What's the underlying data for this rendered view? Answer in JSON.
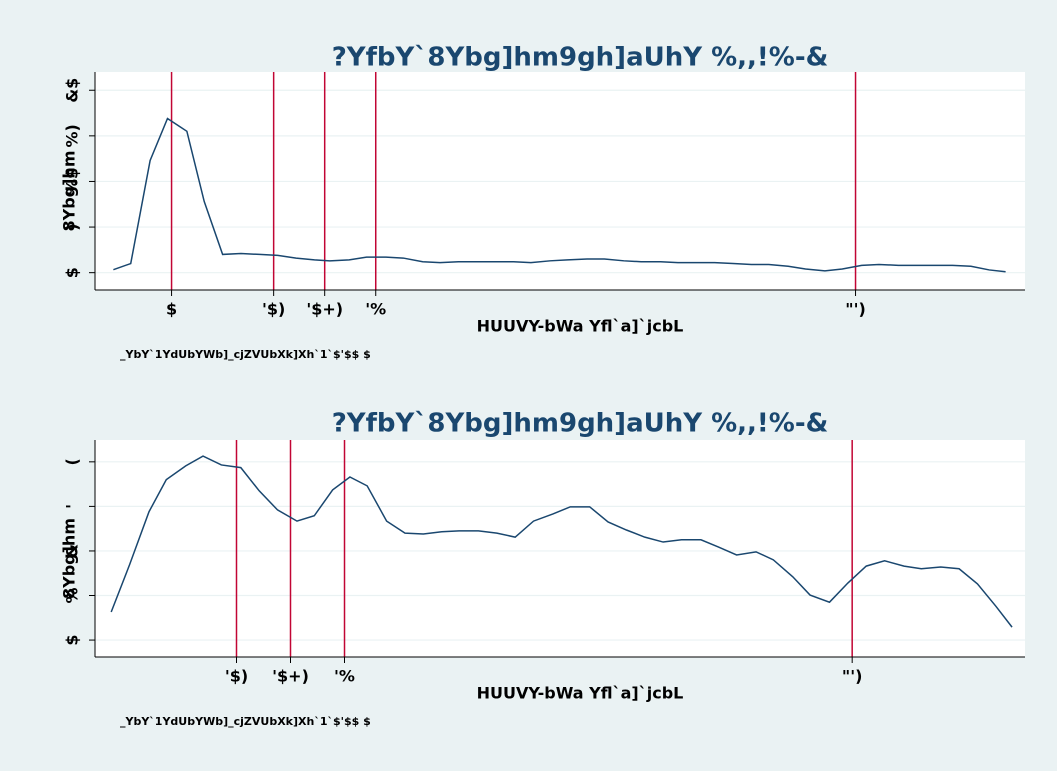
{
  "chart_data": [
    {
      "type": "line",
      "title": "?YfbY`8Ybg]hm9gh]aUhY %,,!%-&",
      "ylabel": "8Ybg]hm",
      "xlabel": "HUUVY-bWa Yfl`a]`jcbL",
      "note": "_YbY`1YdUbYWb]_cjZVUbXk]Xh`1`$'$$ $",
      "xlim": [
        -0.75,
        8.36
      ],
      "ylim": [
        -1.9,
        22
      ],
      "xticks": [
        {
          "value": 0,
          "label": "$"
        },
        {
          "value": 1,
          "label": "'$)"
        },
        {
          "value": 1.5,
          "label": "'$+)"
        },
        {
          "value": 2,
          "label": "'%"
        },
        {
          "value": 6.7,
          "label": "\"')"
        }
      ],
      "yticks": [
        {
          "value": 0,
          "label": "$"
        },
        {
          "value": 5,
          "label": ")"
        },
        {
          "value": 10,
          "label": "%$"
        },
        {
          "value": 15,
          "label": "%)"
        },
        {
          "value": 20,
          "label": "&$"
        }
      ],
      "grid": true,
      "xlines": true,
      "xline_color": "#c10534",
      "x": [
        -0.57,
        -0.4,
        -0.21,
        -0.04,
        0.15,
        0.32,
        0.5,
        0.68,
        0.86,
        1.04,
        1.22,
        1.4,
        1.55,
        1.74,
        1.91,
        2.1,
        2.27,
        2.46,
        2.63,
        2.81,
        2.99,
        3.17,
        3.35,
        3.52,
        3.71,
        3.88,
        4.07,
        4.24,
        4.43,
        4.6,
        4.79,
        4.96,
        5.15,
        5.32,
        5.5,
        5.68,
        5.85,
        6.04,
        6.21,
        6.4,
        6.57,
        6.76,
        6.93,
        7.12,
        7.29,
        7.48,
        7.65,
        7.83,
        8.01,
        8.17
      ],
      "series": [
        {
          "color": "#1a476f",
          "values": [
            0.33,
            1.0,
            12.3,
            16.9,
            15.5,
            7.8,
            2.0,
            2.1,
            2.0,
            1.9,
            1.6,
            1.4,
            1.3,
            1.4,
            1.7,
            1.7,
            1.6,
            1.2,
            1.1,
            1.2,
            1.2,
            1.2,
            1.2,
            1.1,
            1.3,
            1.4,
            1.5,
            1.5,
            1.3,
            1.2,
            1.2,
            1.1,
            1.1,
            1.1,
            1.0,
            0.9,
            0.9,
            0.7,
            0.4,
            0.2,
            0.4,
            0.8,
            0.9,
            0.8,
            0.8,
            0.8,
            0.8,
            0.7,
            0.3,
            0.1
          ]
        }
      ]
    },
    {
      "type": "line",
      "title": "?YfbY`8Ybg]hm9gh]aUhY %,,!%-&",
      "ylabel": "8Ybg]hm",
      "xlabel": "HUUVY-bWa Yfl`a]`jcbL",
      "note": "_YbY`1YdUbYWb]_cjZVUbXk]Xh`1`$'$$ $",
      "xlim": [
        -0.31,
        8.3
      ],
      "ylim": [
        -0.38,
        4.49
      ],
      "xticks": [
        {
          "value": 1,
          "label": "'$)"
        },
        {
          "value": 1.5,
          "label": "'$+)"
        },
        {
          "value": 2,
          "label": "'%"
        },
        {
          "value": 6.7,
          "label": "\"')"
        }
      ],
      "yticks": [
        {
          "value": 0,
          "label": "$"
        },
        {
          "value": 1,
          "label": "%"
        },
        {
          "value": 2,
          "label": "&"
        },
        {
          "value": 3,
          "label": "'"
        },
        {
          "value": 4,
          "label": "("
        }
      ],
      "grid": true,
      "xlines": true,
      "xline_color": "#c10534",
      "x": [
        -0.16,
        0.01,
        0.19,
        0.35,
        0.53,
        0.69,
        0.86,
        1.04,
        1.21,
        1.38,
        1.56,
        1.72,
        1.89,
        2.05,
        2.21,
        2.39,
        2.56,
        2.73,
        2.9,
        3.06,
        3.24,
        3.41,
        3.58,
        3.75,
        3.93,
        4.09,
        4.27,
        4.44,
        4.61,
        4.78,
        4.95,
        5.12,
        5.3,
        5.46,
        5.63,
        5.81,
        5.97,
        6.15,
        6.31,
        6.49,
        6.66,
        6.83,
        7.0,
        7.18,
        7.34,
        7.52,
        7.69,
        7.86,
        8.03,
        8.18
      ],
      "series": [
        {
          "color": "#1a476f",
          "values": [
            0.63,
            1.69,
            2.88,
            3.6,
            3.91,
            4.13,
            3.93,
            3.87,
            3.35,
            2.92,
            2.67,
            2.79,
            3.37,
            3.66,
            3.46,
            2.67,
            2.4,
            2.38,
            2.43,
            2.45,
            2.45,
            2.4,
            2.31,
            2.67,
            2.83,
            2.99,
            2.99,
            2.65,
            2.47,
            2.31,
            2.2,
            2.25,
            2.25,
            2.09,
            1.91,
            1.98,
            1.8,
            1.42,
            1.01,
            0.85,
            1.28,
            1.66,
            1.78,
            1.66,
            1.6,
            1.64,
            1.6,
            1.26,
            0.76,
            0.29
          ]
        }
      ]
    }
  ]
}
